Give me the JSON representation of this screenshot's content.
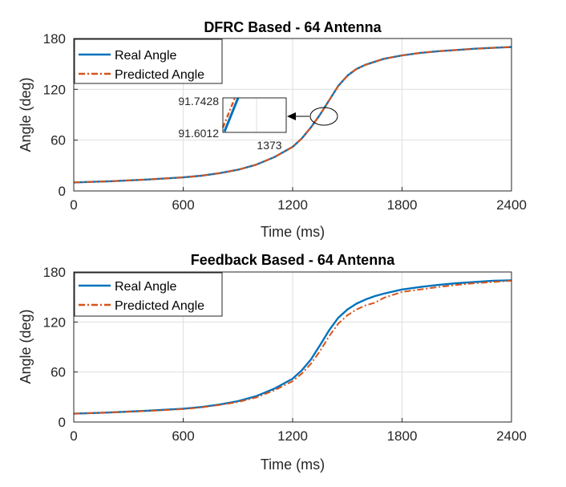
{
  "chart_data": [
    {
      "type": "line",
      "title": "DFRC Based - 64 Antenna",
      "xlabel": "Time (ms)",
      "ylabel": "Angle (deg)",
      "xlim": [
        0,
        2400
      ],
      "ylim": [
        0,
        180
      ],
      "xticks": [
        "0",
        "600",
        "1200",
        "1800",
        "2400"
      ],
      "yticks": [
        "0",
        "60",
        "120",
        "180"
      ],
      "grid": true,
      "legend_position": "top-left",
      "series": [
        {
          "name": "Real Angle",
          "color": "#0072BD",
          "style": "solid",
          "x": [
            0,
            200,
            400,
            600,
            700,
            800,
            900,
            1000,
            1100,
            1200,
            1250,
            1300,
            1350,
            1400,
            1450,
            1500,
            1550,
            1600,
            1700,
            1800,
            1900,
            2000,
            2100,
            2200,
            2300,
            2400
          ],
          "y": [
            10,
            11.5,
            13.5,
            16,
            18,
            21,
            25,
            31,
            40,
            52,
            62,
            75,
            90,
            107,
            124,
            136,
            144,
            149,
            156,
            160,
            163,
            165,
            166.5,
            168,
            169,
            170
          ]
        },
        {
          "name": "Predicted Angle",
          "color": "#D95319",
          "style": "dashdot",
          "x": [
            0,
            200,
            400,
            600,
            700,
            800,
            900,
            1000,
            1100,
            1200,
            1250,
            1300,
            1350,
            1400,
            1450,
            1500,
            1550,
            1600,
            1700,
            1800,
            1900,
            2000,
            2100,
            2200,
            2300,
            2400
          ],
          "y": [
            10,
            11.5,
            13.5,
            16,
            18,
            21,
            25,
            31,
            40,
            52,
            62,
            75,
            90,
            107,
            124,
            136,
            144,
            149,
            156,
            160,
            163,
            165,
            166.5,
            168,
            169,
            170
          ]
        }
      ],
      "inset": {
        "ytop_label": "91.7428",
        "ybottom_label": "91.6012",
        "xtick_label": "1373",
        "zoom_center_x": 1373,
        "zoom_center_y": 91.7,
        "real_line": [
          [
            1372.98,
            91.6012
          ],
          [
            1373.02,
            91.7428
          ]
        ],
        "predicted_line": [
          [
            1372.96,
            91.6012
          ],
          [
            1373.0,
            91.7428
          ]
        ]
      }
    },
    {
      "type": "line",
      "title": "Feedback Based - 64 Antenna",
      "xlabel": "Time (ms)",
      "ylabel": "Angle (deg)",
      "xlim": [
        0,
        2400
      ],
      "ylim": [
        0,
        180
      ],
      "xticks": [
        "0",
        "600",
        "1200",
        "1800",
        "2400"
      ],
      "yticks": [
        "0",
        "60",
        "120",
        "180"
      ],
      "grid": true,
      "legend_position": "top-left",
      "series": [
        {
          "name": "Real Angle",
          "color": "#0072BD",
          "style": "solid",
          "x": [
            0,
            200,
            400,
            600,
            700,
            800,
            900,
            1000,
            1100,
            1200,
            1250,
            1300,
            1350,
            1400,
            1450,
            1500,
            1550,
            1600,
            1650,
            1700,
            1800,
            1900,
            2000,
            2100,
            2200,
            2300,
            2400
          ],
          "y": [
            10,
            11.5,
            13.5,
            16,
            18,
            21,
            25,
            31,
            40,
            52,
            62,
            75,
            92,
            110,
            125,
            135,
            142,
            147,
            151,
            154,
            159,
            162,
            164.5,
            166.5,
            168,
            169.5,
            170
          ]
        },
        {
          "name": "Predicted Angle",
          "color": "#D95319",
          "style": "dashdot",
          "x": [
            0,
            200,
            400,
            600,
            700,
            800,
            900,
            1000,
            1100,
            1200,
            1250,
            1300,
            1350,
            1400,
            1450,
            1500,
            1550,
            1600,
            1650,
            1700,
            1800,
            1900,
            2000,
            2100,
            2200,
            2300,
            2400
          ],
          "y": [
            10,
            11.5,
            13.2,
            15.5,
            17.5,
            20.5,
            24,
            29.5,
            38,
            49,
            58,
            70,
            85,
            103,
            118,
            128,
            135,
            140,
            143,
            149,
            156,
            159,
            162,
            164.5,
            166.5,
            168,
            169.5
          ]
        }
      ]
    }
  ]
}
